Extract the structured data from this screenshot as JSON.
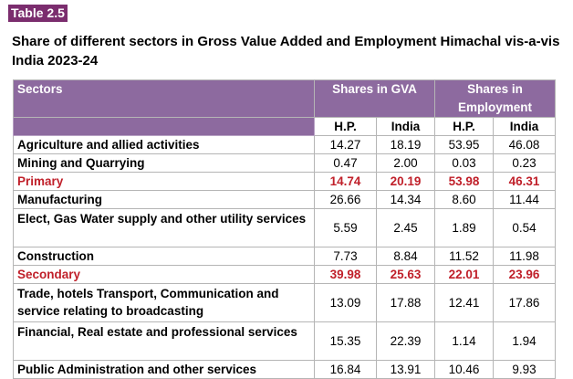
{
  "table_tag": "Table 2.5",
  "heading": "Share of different sectors in Gross Value Added and Employment Himachal vis-a-vis India 2023-24",
  "columns": {
    "sectors": "Sectors",
    "gva": "Shares in GVA",
    "employment": "Shares in Employment",
    "hp": "H.P.",
    "india": "India"
  },
  "rows": [
    {
      "label": "Agriculture and allied activities",
      "gva_hp": "14.27",
      "gva_india": "18.19",
      "emp_hp": "53.95",
      "emp_india": "46.08"
    },
    {
      "label": "Mining and Quarrying",
      "gva_hp": "0.47",
      "gva_india": "2.00",
      "emp_hp": "0.03",
      "emp_india": "0.23"
    },
    {
      "label": "Primary",
      "gva_hp": "14.74",
      "gva_india": "20.19",
      "emp_hp": "53.98",
      "emp_india": "46.31"
    },
    {
      "label": "Manufacturing",
      "gva_hp": "26.66",
      "gva_india": "14.34",
      "emp_hp": "8.60",
      "emp_india": "11.44"
    },
    {
      "label": "Elect, Gas Water supply and other utility services",
      "gva_hp": "5.59",
      "gva_india": "2.45",
      "emp_hp": "1.89",
      "emp_india": "0.54"
    },
    {
      "label": "Construction",
      "gva_hp": "7.73",
      "gva_india": "8.84",
      "emp_hp": "11.52",
      "emp_india": "11.98"
    },
    {
      "label": "Secondary",
      "gva_hp": "39.98",
      "gva_india": "25.63",
      "emp_hp": "22.01",
      "emp_india": "23.96"
    },
    {
      "label": "Trade, hotels Transport, Communication and service relating to broadcasting",
      "gva_hp": "13.09",
      "gva_india": "17.88",
      "emp_hp": "12.41",
      "emp_india": "17.86"
    },
    {
      "label": "Financial, Real estate and professional services",
      "gva_hp": "15.35",
      "gva_india": "22.39",
      "emp_hp": "1.14",
      "emp_india": "1.94"
    },
    {
      "label": "Public Administration and other services",
      "gva_hp": "16.84",
      "gva_india": "13.91",
      "emp_hp": "10.46",
      "emp_india": "9.93"
    }
  ]
}
